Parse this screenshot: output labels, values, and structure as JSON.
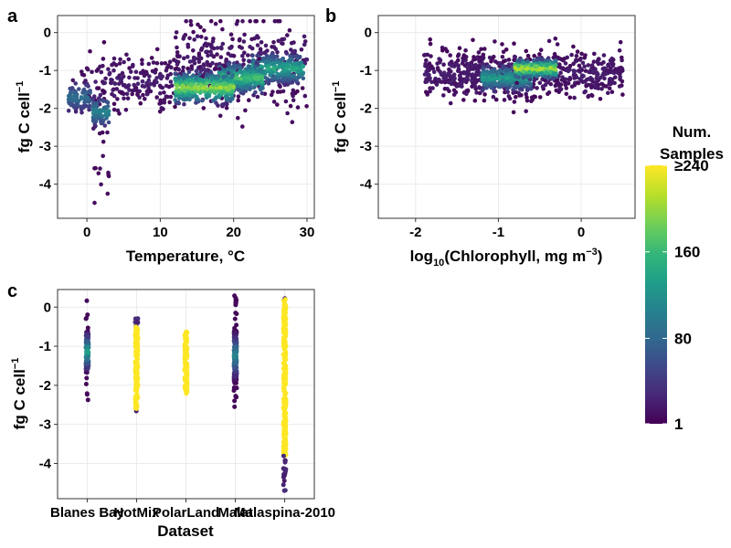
{
  "chart_data": [
    {
      "panel": "a",
      "type": "scatter",
      "xlabel": "Temperature, °C",
      "ylabel": "fg C cell",
      "ylabel_sup": "−1",
      "xlim": [
        -4,
        31
      ],
      "ylim": [
        -4.9,
        0.45
      ],
      "xticks": [
        0,
        10,
        20,
        30
      ],
      "xtick_labels": [
        "0",
        "10",
        "20",
        "30"
      ],
      "yticks": [
        0,
        -1,
        -2,
        -3,
        -4
      ],
      "ytick_labels": [
        "0",
        "-1",
        "-2",
        "-3",
        "-4"
      ],
      "grid": true,
      "color_by": "Num. Samples",
      "clusters": [
        {
          "x_range": [
            -2.5,
            0.5
          ],
          "y_center": -1.7,
          "y_spread": 0.35,
          "count": 90,
          "density": 0.35
        },
        {
          "x_range": [
            0.8,
            3.0
          ],
          "y_center": -2.1,
          "y_spread": 0.35,
          "count": 90,
          "density": 0.45
        },
        {
          "x_range": [
            1.0,
            3.0
          ],
          "y_center": -3.5,
          "y_spread": 0.6,
          "count": 12,
          "density": 0.0
        },
        {
          "x_range": [
            0.0,
            12.0
          ],
          "y_center": -1.3,
          "y_spread": 0.6,
          "count": 180,
          "density": 0.05
        },
        {
          "x_range": [
            12.0,
            20.0
          ],
          "y_center": -1.45,
          "y_spread": 0.35,
          "count": 320,
          "density": 0.85
        },
        {
          "x_range": [
            18.0,
            24.0
          ],
          "y_center": -1.2,
          "y_spread": 0.35,
          "count": 260,
          "density": 0.7
        },
        {
          "x_range": [
            22.0,
            29.5
          ],
          "y_center": -0.95,
          "y_spread": 0.35,
          "count": 260,
          "density": 0.6
        },
        {
          "x_range": [
            12.0,
            30.0
          ],
          "y_center": -0.8,
          "y_spread": 0.9,
          "count": 320,
          "density": 0.05
        }
      ]
    },
    {
      "panel": "b",
      "type": "scatter",
      "xlabel": "log",
      "xlabel_sub": "10",
      "xlabel_rest": "(Chlorophyll, mg m",
      "xlabel_sup": "−3",
      "xlabel_end": ")",
      "ylabel": "fg C cell",
      "ylabel_sup": "−1",
      "xlim": [
        -2.45,
        0.65
      ],
      "ylim": [
        -4.9,
        0.45
      ],
      "xticks": [
        -2,
        -1,
        0
      ],
      "xtick_labels": [
        "-2",
        "-1",
        "0"
      ],
      "yticks": [
        0,
        -1,
        -2,
        -3,
        -4
      ],
      "ytick_labels": [
        "0",
        "-1",
        "-2",
        "-3",
        "-4"
      ],
      "grid": true,
      "color_by": "Num. Samples",
      "clusters": [
        {
          "x_range": [
            -0.8,
            -0.3
          ],
          "y_center": -0.95,
          "y_spread": 0.22,
          "count": 260,
          "density": 0.9
        },
        {
          "x_range": [
            -1.2,
            -0.6
          ],
          "y_center": -1.2,
          "y_spread": 0.3,
          "count": 260,
          "density": 0.55
        },
        {
          "x_range": [
            -1.9,
            0.5
          ],
          "y_center": -1.1,
          "y_spread": 0.55,
          "count": 650,
          "density": 0.05
        }
      ]
    },
    {
      "panel": "c",
      "type": "strip",
      "xlabel": "Dataset",
      "ylabel": "fg C cell",
      "ylabel_sup": "−1",
      "ylim": [
        -4.9,
        0.45
      ],
      "categories": [
        "Blanes Bay",
        "HotMix",
        "PolarLand",
        "Malat",
        "Malaspina-2010"
      ],
      "yticks": [
        0,
        -1,
        -2,
        -3,
        -4
      ],
      "ytick_labels": [
        "0",
        "-1",
        "-2",
        "-3",
        "-4"
      ],
      "grid": true,
      "color_by": "Num. Samples",
      "strips": [
        {
          "category": "Blanes Bay",
          "y_min": -2.5,
          "y_max": 0.25,
          "core_min": -1.7,
          "core_max": -0.6,
          "count": 110,
          "core_density": 0.55
        },
        {
          "category": "HotMix",
          "y_min": -2.7,
          "y_max": -0.2,
          "core_min": -2.6,
          "core_max": -0.5,
          "count": 160,
          "core_density": 1.0
        },
        {
          "category": "PolarLand",
          "y_min": -2.25,
          "y_max": -0.6,
          "core_min": -2.25,
          "core_max": -0.6,
          "count": 120,
          "core_density": 1.0
        },
        {
          "category": "Malat",
          "y_min": -2.7,
          "y_max": 0.3,
          "core_min": -1.9,
          "core_max": -0.6,
          "count": 220,
          "core_density": 0.45
        },
        {
          "category": "Malaspina-2010",
          "y_min": -4.7,
          "y_max": 0.3,
          "core_min": -3.8,
          "core_max": 0.2,
          "count": 320,
          "core_density": 1.0
        }
      ]
    }
  ],
  "labels": {
    "a": "a",
    "b": "b",
    "c": "c"
  },
  "legend": {
    "title_line1": "Num.",
    "title_line2": "Samples",
    "tick_labels": [
      "≥240",
      "160",
      "80",
      "1"
    ],
    "tick_values": [
      240,
      160,
      80,
      1
    ],
    "max": 240,
    "min": 1,
    "colormap": "viridis",
    "colors": [
      "#440154",
      "#482878",
      "#3e4989",
      "#31688e",
      "#26828e",
      "#1f9e89",
      "#35b779",
      "#6ece58",
      "#b5de2b",
      "#fde725"
    ]
  }
}
